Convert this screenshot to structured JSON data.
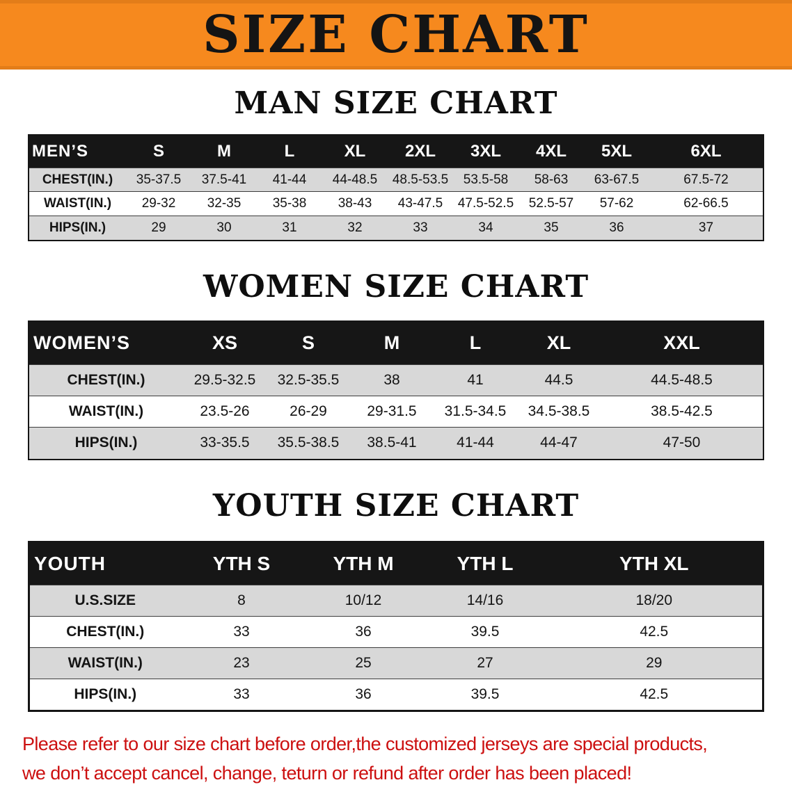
{
  "banner": {
    "title": "SIZE CHART",
    "bg_color": "#f6891e",
    "text_color": "#141414"
  },
  "sections": [
    {
      "id": "men",
      "heading": "MAN SIZE CHART",
      "table": {
        "header": [
          "MEN’S",
          "S",
          "M",
          "L",
          "XL",
          "2XL",
          "3XL",
          "4XL",
          "5XL",
          "6XL"
        ],
        "rows": [
          [
            "CHEST(IN.)",
            "35-37.5",
            "37.5-41",
            "41-44",
            "44-48.5",
            "48.5-53.5",
            "53.5-58",
            "58-63",
            "63-67.5",
            "67.5-72"
          ],
          [
            "WAIST(IN.)",
            "29-32",
            "32-35",
            "35-38",
            "38-43",
            "43-47.5",
            "47.5-52.5",
            "52.5-57",
            "57-62",
            "62-66.5"
          ],
          [
            "HIPS(IN.)",
            "29",
            "30",
            "31",
            "32",
            "33",
            "34",
            "35",
            "36",
            "37"
          ]
        ]
      }
    },
    {
      "id": "women",
      "heading": "WOMEN SIZE CHART",
      "table": {
        "header": [
          "WOMEN’S",
          "XS",
          "S",
          "M",
          "L",
          "XL",
          "XXL"
        ],
        "rows": [
          [
            "CHEST(IN.)",
            "29.5-32.5",
            "32.5-35.5",
            "38",
            "41",
            "44.5",
            "44.5-48.5"
          ],
          [
            "WAIST(IN.)",
            "23.5-26",
            "26-29",
            "29-31.5",
            "31.5-34.5",
            "34.5-38.5",
            "38.5-42.5"
          ],
          [
            "HIPS(IN.)",
            "33-35.5",
            "35.5-38.5",
            "38.5-41",
            "41-44",
            "44-47",
            "47-50"
          ]
        ]
      }
    },
    {
      "id": "youth",
      "heading": "YOUTH SIZE CHART",
      "table": {
        "header": [
          "YOUTH",
          "YTH S",
          "YTH M",
          "YTH L",
          "YTH XL"
        ],
        "rows": [
          [
            "U.S.SIZE",
            "8",
            "10/12",
            "14/16",
            "18/20"
          ],
          [
            "CHEST(IN.)",
            "33",
            "36",
            "39.5",
            "42.5"
          ],
          [
            "WAIST(IN.)",
            "23",
            "25",
            "27",
            "29"
          ],
          [
            "HIPS(IN.)",
            "33",
            "36",
            "39.5",
            "42.5"
          ]
        ]
      }
    }
  ],
  "footer": {
    "line1": "Please refer to our size chart before order,the customized jerseys are special products,",
    "line2": "we don’t accept cancel, change, teturn or refund after order has been placed!",
    "text_color": "#cc1010"
  },
  "colors": {
    "header_row_bg": "#161616",
    "header_row_text": "#ffffff",
    "stripe_row_bg": "#d8d8d8"
  }
}
